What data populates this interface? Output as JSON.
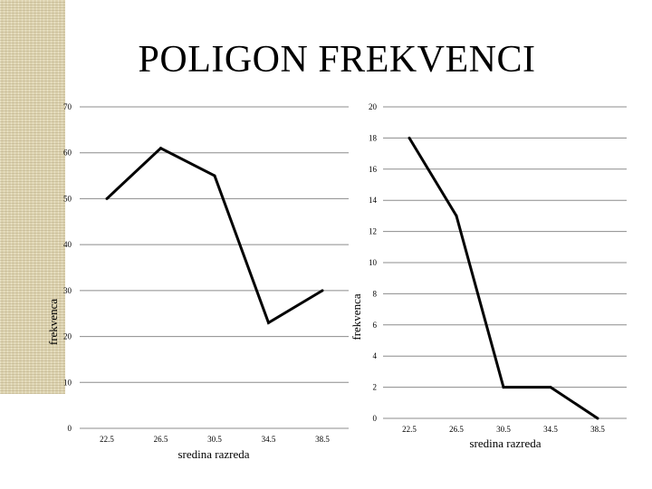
{
  "slide": {
    "title": "POLIGON FREKVENCI"
  },
  "chart_data": [
    {
      "type": "line",
      "categories": [
        "22.5",
        "26.5",
        "30.5",
        "34.5",
        "38.5"
      ],
      "series": [
        {
          "values": [
            50,
            61,
            55,
            23,
            30
          ]
        }
      ],
      "xlabel": "sredina razreda",
      "ylabel": "frekvenca",
      "ylim": [
        0,
        70
      ],
      "yticks": [
        0,
        10,
        20,
        30,
        40,
        50,
        60,
        70
      ],
      "grid": true,
      "line_color": "#000000"
    },
    {
      "type": "line",
      "categories": [
        "22.5",
        "26.5",
        "30.5",
        "34.5",
        "38.5"
      ],
      "series": [
        {
          "values": [
            18,
            13,
            2,
            2,
            0
          ]
        }
      ],
      "xlabel": "sredina razreda",
      "ylabel": "frekvenca",
      "ylim": [
        0,
        20
      ],
      "yticks": [
        0,
        2,
        4,
        6,
        8,
        10,
        12,
        14,
        16,
        18,
        20
      ],
      "grid": true,
      "line_color": "#000000"
    }
  ]
}
